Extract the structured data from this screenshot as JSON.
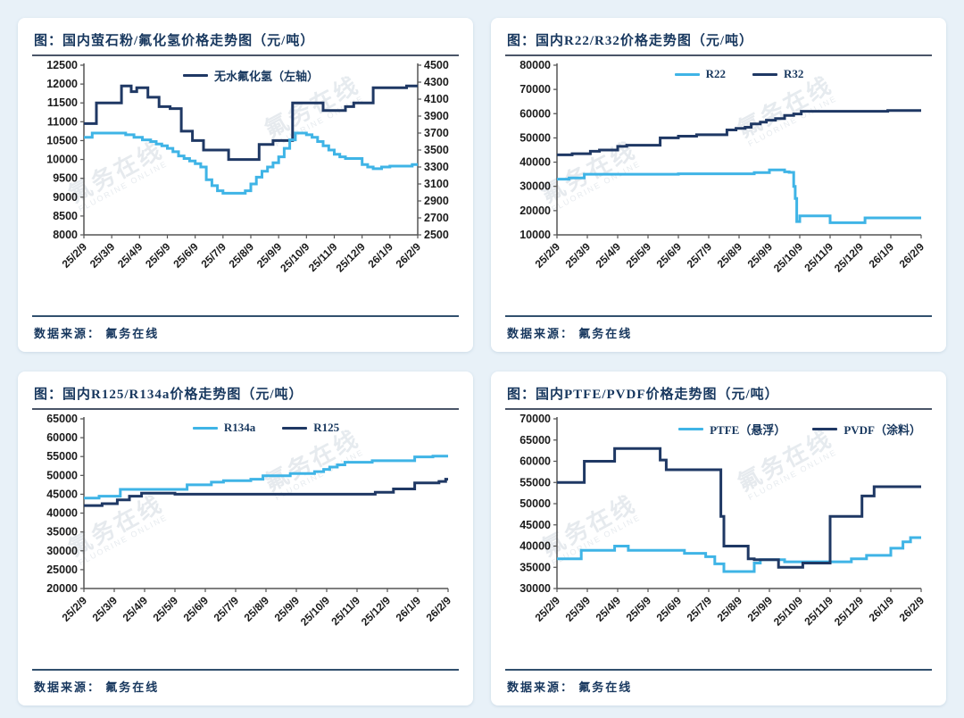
{
  "colors": {
    "accent_light_blue": "#3FB4E6",
    "accent_dark_navy": "#1F3864",
    "title_navy": "#17375E",
    "page_background": "#E8F1F8",
    "axis_text": "#1B1B1B"
  },
  "watermark": {
    "cn": "氟务在线",
    "en": "FLUORINE ONLINE"
  },
  "x_tick_labels": [
    "25/2/9",
    "25/3/9",
    "25/4/9",
    "25/5/9",
    "25/6/9",
    "25/7/9",
    "25/8/9",
    "25/9/9",
    "25/10/9",
    "25/11/9",
    "25/12/9",
    "26/1/9",
    "26/2/9"
  ],
  "chart_data": [
    {
      "type": "line",
      "title": "图：国内萤石粉/氟化氢价格走势图（元/吨）",
      "source": "数据来源：  氟务在线",
      "legend_position": "center",
      "x_range": [
        0,
        12
      ],
      "left_axis": {
        "min": 8000,
        "max": 12500,
        "step": 500
      },
      "right_axis": {
        "min": 2500,
        "max": 4500,
        "step": 200
      },
      "grid": false,
      "series": [
        {
          "name": "无水氟化氢（左轴）",
          "show_in_legend": true,
          "color": "#1F3864",
          "axis": "left",
          "points": [
            [
              0,
              10950
            ],
            [
              0.45,
              11500
            ],
            [
              1.35,
              11950
            ],
            [
              1.7,
              11800
            ],
            [
              1.9,
              11900
            ],
            [
              2.3,
              11650
            ],
            [
              2.7,
              11400
            ],
            [
              3.1,
              11350
            ],
            [
              3.5,
              10750
            ],
            [
              3.9,
              10500
            ],
            [
              4.3,
              10250
            ],
            [
              5.2,
              10000
            ],
            [
              6.3,
              10400
            ],
            [
              6.8,
              10500
            ],
            [
              7.5,
              11500
            ],
            [
              8.6,
              11300
            ],
            [
              9.4,
              11400
            ],
            [
              9.7,
              11500
            ],
            [
              10.4,
              11900
            ],
            [
              11.6,
              11950
            ]
          ]
        },
        {
          "name": "萤石粉",
          "show_in_legend": false,
          "color": "#3FB4E6",
          "axis": "right",
          "points": [
            [
              0,
              3650
            ],
            [
              0.3,
              3700
            ],
            [
              1.5,
              3680
            ],
            [
              1.8,
              3650
            ],
            [
              2.1,
              3620
            ],
            [
              2.4,
              3600
            ],
            [
              2.6,
              3570
            ],
            [
              2.8,
              3550
            ],
            [
              3.0,
              3520
            ],
            [
              3.2,
              3480
            ],
            [
              3.4,
              3430
            ],
            [
              3.6,
              3400
            ],
            [
              3.8,
              3370
            ],
            [
              4.0,
              3340
            ],
            [
              4.2,
              3300
            ],
            [
              4.4,
              3150
            ],
            [
              4.6,
              3080
            ],
            [
              4.8,
              3020
            ],
            [
              5.0,
              2990
            ],
            [
              5.8,
              3020
            ],
            [
              6.0,
              3100
            ],
            [
              6.2,
              3180
            ],
            [
              6.4,
              3250
            ],
            [
              6.6,
              3300
            ],
            [
              6.8,
              3350
            ],
            [
              7.0,
              3420
            ],
            [
              7.2,
              3520
            ],
            [
              7.4,
              3620
            ],
            [
              7.6,
              3700
            ],
            [
              8.0,
              3680
            ],
            [
              8.2,
              3650
            ],
            [
              8.4,
              3600
            ],
            [
              8.6,
              3550
            ],
            [
              8.8,
              3500
            ],
            [
              9.0,
              3450
            ],
            [
              9.2,
              3420
            ],
            [
              9.4,
              3400
            ],
            [
              10.0,
              3330
            ],
            [
              10.2,
              3300
            ],
            [
              10.4,
              3280
            ],
            [
              10.7,
              3300
            ],
            [
              11.0,
              3310
            ],
            [
              11.8,
              3330
            ]
          ]
        }
      ]
    },
    {
      "type": "line",
      "title": "图：国内R22/R32价格走势图（元/吨）",
      "source": "数据来源：  氟务在线",
      "legend_position": "center",
      "x_range": [
        0,
        12
      ],
      "left_axis": {
        "min": 10000,
        "max": 80000,
        "step": 10000
      },
      "grid": false,
      "series": [
        {
          "name": "R22",
          "show_in_legend": true,
          "color": "#3FB4E6",
          "axis": "left",
          "points": [
            [
              0,
              33000
            ],
            [
              0.4,
              33500
            ],
            [
              0.9,
              35000
            ],
            [
              4.0,
              35200
            ],
            [
              6.5,
              35700
            ],
            [
              7.0,
              36800
            ],
            [
              7.5,
              36000
            ],
            [
              7.65,
              35800
            ],
            [
              7.8,
              30000
            ],
            [
              7.85,
              25000
            ],
            [
              7.9,
              15500
            ],
            [
              8.0,
              17800
            ],
            [
              9.0,
              15000
            ],
            [
              10.15,
              17000
            ]
          ]
        },
        {
          "name": "R32",
          "show_in_legend": true,
          "color": "#1F3864",
          "axis": "left",
          "points": [
            [
              0,
              43000
            ],
            [
              0.5,
              43500
            ],
            [
              1.1,
              44500
            ],
            [
              1.4,
              45000
            ],
            [
              2.0,
              46500
            ],
            [
              2.3,
              47000
            ],
            [
              3.4,
              50000
            ],
            [
              4.0,
              50700
            ],
            [
              4.6,
              51300
            ],
            [
              5.6,
              53300
            ],
            [
              5.9,
              53900
            ],
            [
              6.2,
              54400
            ],
            [
              6.4,
              55800
            ],
            [
              6.7,
              56500
            ],
            [
              6.9,
              57300
            ],
            [
              7.2,
              58000
            ],
            [
              7.5,
              59300
            ],
            [
              7.8,
              59900
            ],
            [
              8.05,
              61000
            ],
            [
              10.9,
              61300
            ]
          ]
        }
      ]
    },
    {
      "type": "line",
      "title": "图：国内R125/R134a价格走势图（元/吨）",
      "source": "数据来源：  氟务在线",
      "legend_position": "center",
      "x_range": [
        0,
        12
      ],
      "left_axis": {
        "min": 20000,
        "max": 65000,
        "step": 5000
      },
      "grid": false,
      "series": [
        {
          "name": "R134a",
          "show_in_legend": true,
          "color": "#3FB4E6",
          "axis": "left",
          "points": [
            [
              0,
              44000
            ],
            [
              0.5,
              44500
            ],
            [
              1.2,
              46300
            ],
            [
              3.4,
              47500
            ],
            [
              4.2,
              48200
            ],
            [
              4.6,
              48600
            ],
            [
              5.5,
              49000
            ],
            [
              5.9,
              49900
            ],
            [
              6.8,
              50500
            ],
            [
              7.6,
              51000
            ],
            [
              7.9,
              51600
            ],
            [
              8.1,
              52200
            ],
            [
              8.35,
              52800
            ],
            [
              8.6,
              53500
            ],
            [
              9.5,
              53900
            ],
            [
              10.9,
              54900
            ],
            [
              11.5,
              55100
            ]
          ]
        },
        {
          "name": "R125",
          "show_in_legend": true,
          "color": "#1F3864",
          "axis": "left",
          "points": [
            [
              0,
              42000
            ],
            [
              0.6,
              42500
            ],
            [
              1.1,
              43500
            ],
            [
              1.5,
              44500
            ],
            [
              1.9,
              45300
            ],
            [
              3.0,
              45000
            ],
            [
              9.6,
              45500
            ],
            [
              10.2,
              46400
            ],
            [
              10.9,
              48000
            ],
            [
              11.7,
              48400
            ],
            [
              11.92,
              49000
            ]
          ]
        }
      ]
    },
    {
      "type": "line",
      "title": "图：国内PTFE/PVDF价格走势图（元/吨）",
      "source": "数据来源：  氟务在线",
      "legend_position": "right",
      "x_range": [
        0,
        12
      ],
      "left_axis": {
        "min": 30000,
        "max": 70000,
        "step": 5000
      },
      "grid": false,
      "series": [
        {
          "name": "PTFE（悬浮）",
          "show_in_legend": true,
          "color": "#3FB4E6",
          "axis": "left",
          "points": [
            [
              0,
              37000
            ],
            [
              0.8,
              39000
            ],
            [
              1.9,
              40000
            ],
            [
              2.35,
              39000
            ],
            [
              4.2,
              38300
            ],
            [
              4.9,
              37500
            ],
            [
              5.2,
              35800
            ],
            [
              5.5,
              34000
            ],
            [
              6.5,
              36000
            ],
            [
              6.7,
              36800
            ],
            [
              7.5,
              36300
            ],
            [
              9.7,
              37000
            ],
            [
              10.2,
              37800
            ],
            [
              11.0,
              39500
            ],
            [
              11.4,
              41000
            ],
            [
              11.65,
              42000
            ]
          ]
        },
        {
          "name": "PVDF（涂料）",
          "show_in_legend": true,
          "color": "#1F3864",
          "axis": "left",
          "points": [
            [
              0,
              55000
            ],
            [
              0.9,
              60000
            ],
            [
              1.9,
              63000
            ],
            [
              3.4,
              60300
            ],
            [
              3.6,
              58000
            ],
            [
              5.4,
              47000
            ],
            [
              5.5,
              40000
            ],
            [
              6.3,
              37000
            ],
            [
              6.5,
              36800
            ],
            [
              7.3,
              35000
            ],
            [
              8.1,
              36000
            ],
            [
              9.0,
              47000
            ],
            [
              10.05,
              51800
            ],
            [
              10.45,
              54000
            ]
          ]
        }
      ]
    }
  ]
}
